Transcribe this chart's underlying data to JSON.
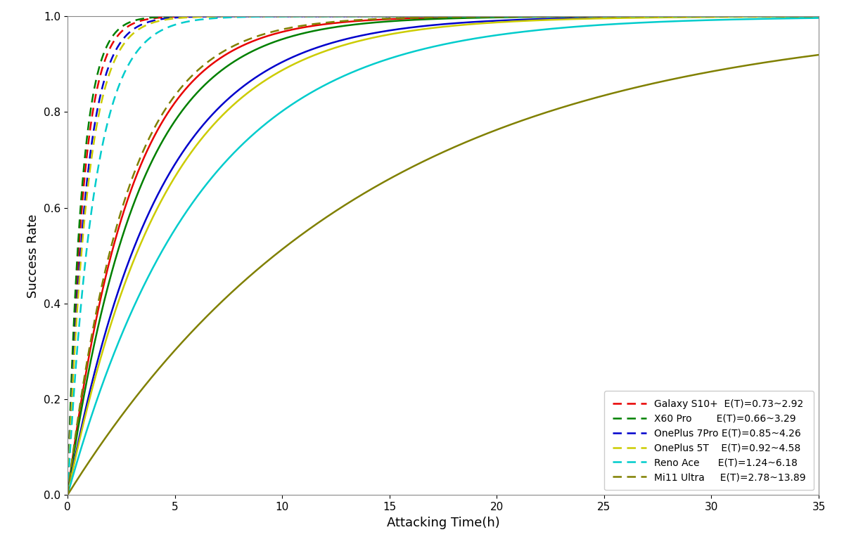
{
  "series": [
    {
      "name": "Galaxy S10+",
      "color": "#e80000",
      "lambda_fast": 0.73,
      "lambda_slow": 2.92
    },
    {
      "name": "X60 Pro",
      "color": "#008000",
      "lambda_fast": 0.66,
      "lambda_slow": 3.29
    },
    {
      "name": "OnePlus 7Pro",
      "color": "#0000cc",
      "lambda_fast": 0.85,
      "lambda_slow": 4.26
    },
    {
      "name": "OnePlus 5T",
      "color": "#cccc00",
      "lambda_fast": 0.92,
      "lambda_slow": 4.58
    },
    {
      "name": "Reno Ace",
      "color": "#00cccc",
      "lambda_fast": 1.24,
      "lambda_slow": 6.18
    },
    {
      "name": "Mi11 Ultra",
      "color": "#808000",
      "lambda_fast": 2.78,
      "lambda_slow": 13.89
    }
  ],
  "legend_labels": [
    "Galaxy S10+  E(T)=0.73~2.92",
    "X60 Pro        E(T)=0.66~3.29",
    "OnePlus 7Pro E(T)=0.85~4.26",
    "OnePlus 5T    E(T)=0.92~4.58",
    "Reno Ace      E(T)=1.24~6.18",
    "Mi11 Ultra     E(T)=2.78~13.89"
  ],
  "x_max": 35,
  "xlabel": "Attacking Time(h)",
  "ylabel": "Success Rate",
  "xlim": [
    0,
    35
  ],
  "ylim": [
    0.0,
    1.0
  ],
  "xticks": [
    0,
    5,
    10,
    15,
    20,
    25,
    30,
    35
  ],
  "yticks": [
    0.0,
    0.2,
    0.4,
    0.6,
    0.8,
    1.0
  ],
  "background_color": "#ffffff",
  "fig_width": 12.0,
  "fig_height": 7.74,
  "dpi": 100
}
